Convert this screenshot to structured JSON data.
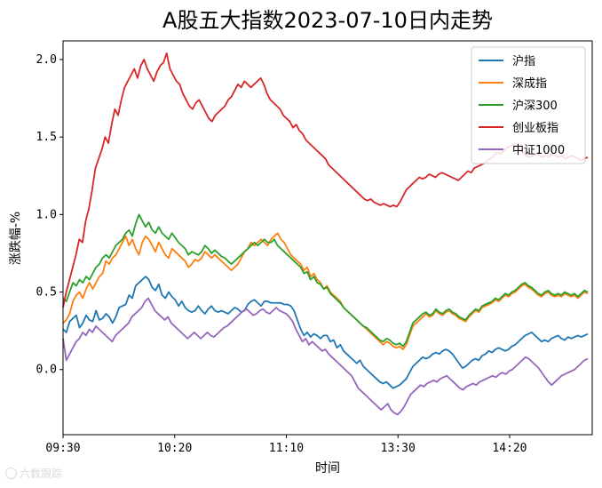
{
  "chart_data": {
    "type": "line",
    "title": "A股五大指数2023-07-10日内走势",
    "xlabel": "时间",
    "ylabel": "涨跌幅-%",
    "x_start": "09:30",
    "x_end": "14:55",
    "xticks": [
      "09:30",
      "10:20",
      "11:10",
      "13:30",
      "14:20"
    ],
    "xlim": [
      "09:30",
      "14:57"
    ],
    "yticks": [
      0.0,
      0.5,
      1.0,
      1.5,
      2.0
    ],
    "ytick_labels": [
      "0.0",
      "0.5",
      "1.0",
      "1.5",
      "2.0"
    ],
    "ylim": [
      -0.42,
      2.12
    ],
    "grid": false,
    "legend_position": "top-right",
    "series": [
      {
        "name": "沪指",
        "color": "#1f77b4",
        "values": [
          0.26,
          0.24,
          0.31,
          0.33,
          0.35,
          0.27,
          0.3,
          0.35,
          0.32,
          0.31,
          0.38,
          0.32,
          0.33,
          0.36,
          0.34,
          0.3,
          0.34,
          0.4,
          0.41,
          0.42,
          0.48,
          0.46,
          0.54,
          0.56,
          0.58,
          0.6,
          0.58,
          0.53,
          0.51,
          0.55,
          0.48,
          0.46,
          0.5,
          0.47,
          0.45,
          0.41,
          0.44,
          0.4,
          0.38,
          0.37,
          0.38,
          0.41,
          0.38,
          0.36,
          0.39,
          0.41,
          0.38,
          0.37,
          0.38,
          0.37,
          0.36,
          0.38,
          0.4,
          0.39,
          0.37,
          0.38,
          0.42,
          0.44,
          0.45,
          0.43,
          0.41,
          0.44,
          0.44,
          0.43,
          0.43,
          0.43,
          0.43,
          0.42,
          0.42,
          0.41,
          0.38,
          0.32,
          0.26,
          0.22,
          0.24,
          0.21,
          0.23,
          0.22,
          0.2,
          0.22,
          0.22,
          0.18,
          0.19,
          0.14,
          0.16,
          0.12,
          0.1,
          0.08,
          0.06,
          0.04,
          0.06,
          0.02,
          0.0,
          -0.02,
          -0.04,
          -0.06,
          -0.08,
          -0.09,
          -0.08,
          -0.1,
          -0.12,
          -0.11,
          -0.1,
          -0.08,
          -0.06,
          -0.02,
          0.02,
          0.04,
          0.06,
          0.08,
          0.07,
          0.08,
          0.1,
          0.11,
          0.1,
          0.12,
          0.13,
          0.12,
          0.1,
          0.07,
          0.04,
          0.01,
          0.02,
          0.04,
          0.06,
          0.07,
          0.06,
          0.09,
          0.1,
          0.12,
          0.11,
          0.13,
          0.14,
          0.13,
          0.12,
          0.13,
          0.15,
          0.16,
          0.18,
          0.2,
          0.22,
          0.23,
          0.24,
          0.22,
          0.2,
          0.18,
          0.19,
          0.18,
          0.2,
          0.21,
          0.22,
          0.2,
          0.19,
          0.21,
          0.2,
          0.21,
          0.22,
          0.21,
          0.22,
          0.23
        ]
      },
      {
        "name": "深成指",
        "color": "#ff7f0e",
        "values": [
          0.3,
          0.32,
          0.36,
          0.44,
          0.48,
          0.5,
          0.46,
          0.52,
          0.56,
          0.52,
          0.56,
          0.6,
          0.62,
          0.7,
          0.68,
          0.72,
          0.74,
          0.78,
          0.82,
          0.86,
          0.8,
          0.84,
          0.78,
          0.74,
          0.82,
          0.86,
          0.84,
          0.8,
          0.76,
          0.82,
          0.78,
          0.74,
          0.72,
          0.78,
          0.76,
          0.74,
          0.72,
          0.7,
          0.66,
          0.68,
          0.71,
          0.7,
          0.72,
          0.76,
          0.74,
          0.72,
          0.74,
          0.72,
          0.7,
          0.68,
          0.66,
          0.64,
          0.66,
          0.68,
          0.72,
          0.76,
          0.78,
          0.82,
          0.8,
          0.82,
          0.84,
          0.82,
          0.8,
          0.84,
          0.86,
          0.88,
          0.84,
          0.82,
          0.78,
          0.74,
          0.72,
          0.7,
          0.68,
          0.64,
          0.66,
          0.6,
          0.62,
          0.58,
          0.56,
          0.52,
          0.54,
          0.5,
          0.48,
          0.46,
          0.44,
          0.4,
          0.38,
          0.36,
          0.34,
          0.32,
          0.3,
          0.28,
          0.26,
          0.24,
          0.22,
          0.2,
          0.18,
          0.16,
          0.18,
          0.17,
          0.15,
          0.14,
          0.15,
          0.13,
          0.16,
          0.22,
          0.28,
          0.3,
          0.32,
          0.34,
          0.36,
          0.34,
          0.35,
          0.38,
          0.36,
          0.35,
          0.37,
          0.38,
          0.36,
          0.35,
          0.33,
          0.32,
          0.31,
          0.34,
          0.36,
          0.38,
          0.37,
          0.4,
          0.41,
          0.42,
          0.43,
          0.45,
          0.44,
          0.46,
          0.48,
          0.47,
          0.49,
          0.5,
          0.52,
          0.54,
          0.55,
          0.53,
          0.52,
          0.5,
          0.48,
          0.47,
          0.49,
          0.5,
          0.48,
          0.47,
          0.48,
          0.47,
          0.49,
          0.48,
          0.47,
          0.48,
          0.46,
          0.48,
          0.5,
          0.49
        ]
      },
      {
        "name": "沪深300",
        "color": "#2ca02c",
        "values": [
          0.46,
          0.44,
          0.5,
          0.56,
          0.54,
          0.58,
          0.56,
          0.6,
          0.58,
          0.62,
          0.66,
          0.68,
          0.72,
          0.74,
          0.72,
          0.76,
          0.8,
          0.82,
          0.84,
          0.88,
          0.9,
          0.86,
          0.94,
          1.0,
          0.96,
          0.92,
          0.95,
          0.9,
          0.88,
          0.92,
          0.88,
          0.86,
          0.84,
          0.88,
          0.85,
          0.82,
          0.8,
          0.78,
          0.74,
          0.76,
          0.75,
          0.74,
          0.76,
          0.8,
          0.78,
          0.75,
          0.77,
          0.75,
          0.73,
          0.72,
          0.7,
          0.68,
          0.7,
          0.72,
          0.74,
          0.76,
          0.78,
          0.8,
          0.82,
          0.8,
          0.82,
          0.84,
          0.82,
          0.82,
          0.84,
          0.8,
          0.78,
          0.76,
          0.74,
          0.72,
          0.7,
          0.68,
          0.66,
          0.62,
          0.63,
          0.58,
          0.6,
          0.56,
          0.55,
          0.52,
          0.53,
          0.49,
          0.47,
          0.45,
          0.43,
          0.4,
          0.38,
          0.36,
          0.34,
          0.32,
          0.3,
          0.28,
          0.27,
          0.25,
          0.23,
          0.21,
          0.19,
          0.18,
          0.2,
          0.19,
          0.17,
          0.16,
          0.17,
          0.15,
          0.18,
          0.24,
          0.3,
          0.32,
          0.34,
          0.36,
          0.37,
          0.35,
          0.36,
          0.39,
          0.37,
          0.36,
          0.38,
          0.39,
          0.37,
          0.36,
          0.34,
          0.33,
          0.32,
          0.35,
          0.37,
          0.39,
          0.38,
          0.41,
          0.42,
          0.43,
          0.44,
          0.46,
          0.45,
          0.47,
          0.49,
          0.48,
          0.5,
          0.51,
          0.53,
          0.55,
          0.56,
          0.54,
          0.53,
          0.51,
          0.49,
          0.48,
          0.5,
          0.51,
          0.49,
          0.48,
          0.49,
          0.48,
          0.5,
          0.49,
          0.48,
          0.49,
          0.47,
          0.49,
          0.51,
          0.5
        ]
      },
      {
        "name": "创业板指",
        "color": "#d62728",
        "values": [
          0.4,
          0.5,
          0.58,
          0.66,
          0.74,
          0.84,
          0.82,
          0.96,
          1.04,
          1.16,
          1.3,
          1.36,
          1.42,
          1.5,
          1.46,
          1.58,
          1.68,
          1.64,
          1.74,
          1.82,
          1.86,
          1.9,
          1.94,
          1.88,
          1.96,
          2.0,
          1.94,
          1.9,
          1.86,
          1.92,
          1.96,
          1.98,
          2.04,
          1.94,
          1.9,
          1.86,
          1.84,
          1.78,
          1.74,
          1.7,
          1.68,
          1.72,
          1.74,
          1.7,
          1.66,
          1.62,
          1.6,
          1.64,
          1.66,
          1.68,
          1.7,
          1.74,
          1.76,
          1.8,
          1.84,
          1.82,
          1.86,
          1.84,
          1.82,
          1.84,
          1.86,
          1.88,
          1.84,
          1.78,
          1.74,
          1.72,
          1.7,
          1.68,
          1.64,
          1.62,
          1.6,
          1.56,
          1.58,
          1.54,
          1.52,
          1.48,
          1.46,
          1.44,
          1.42,
          1.4,
          1.38,
          1.36,
          1.32,
          1.3,
          1.28,
          1.26,
          1.24,
          1.22,
          1.2,
          1.18,
          1.16,
          1.14,
          1.12,
          1.1,
          1.09,
          1.1,
          1.08,
          1.07,
          1.06,
          1.07,
          1.06,
          1.05,
          1.06,
          1.05,
          1.08,
          1.12,
          1.16,
          1.18,
          1.2,
          1.22,
          1.24,
          1.23,
          1.24,
          1.26,
          1.25,
          1.24,
          1.26,
          1.27,
          1.26,
          1.25,
          1.24,
          1.23,
          1.22,
          1.24,
          1.26,
          1.28,
          1.27,
          1.3,
          1.31,
          1.32,
          1.33,
          1.35,
          1.36,
          1.38,
          1.4,
          1.39,
          1.41,
          1.43,
          1.44,
          1.45,
          1.44,
          1.42,
          1.4,
          1.38,
          1.37,
          1.38,
          1.39,
          1.38,
          1.37,
          1.38,
          1.37,
          1.39,
          1.38,
          1.37,
          1.38,
          1.36,
          1.37,
          1.38,
          1.37,
          1.36,
          1.35,
          1.36,
          1.37
        ]
      },
      {
        "name": "中证1000",
        "color": "#9467bd",
        "values": [
          0.2,
          0.06,
          0.1,
          0.14,
          0.18,
          0.2,
          0.24,
          0.22,
          0.26,
          0.24,
          0.28,
          0.26,
          0.24,
          0.22,
          0.2,
          0.18,
          0.22,
          0.24,
          0.26,
          0.28,
          0.3,
          0.34,
          0.36,
          0.38,
          0.4,
          0.44,
          0.46,
          0.42,
          0.38,
          0.36,
          0.34,
          0.32,
          0.34,
          0.3,
          0.28,
          0.26,
          0.24,
          0.22,
          0.2,
          0.22,
          0.24,
          0.22,
          0.2,
          0.22,
          0.24,
          0.22,
          0.21,
          0.23,
          0.25,
          0.27,
          0.28,
          0.3,
          0.32,
          0.34,
          0.36,
          0.38,
          0.39,
          0.37,
          0.35,
          0.36,
          0.38,
          0.39,
          0.37,
          0.36,
          0.38,
          0.4,
          0.38,
          0.37,
          0.36,
          0.34,
          0.31,
          0.26,
          0.22,
          0.18,
          0.2,
          0.16,
          0.18,
          0.16,
          0.14,
          0.12,
          0.13,
          0.1,
          0.08,
          0.06,
          0.04,
          0.02,
          0.0,
          -0.02,
          -0.04,
          -0.08,
          -0.12,
          -0.14,
          -0.16,
          -0.18,
          -0.2,
          -0.22,
          -0.24,
          -0.26,
          -0.24,
          -0.22,
          -0.26,
          -0.28,
          -0.29,
          -0.27,
          -0.24,
          -0.2,
          -0.16,
          -0.14,
          -0.12,
          -0.1,
          -0.11,
          -0.09,
          -0.08,
          -0.07,
          -0.08,
          -0.06,
          -0.05,
          -0.04,
          -0.06,
          -0.08,
          -0.1,
          -0.12,
          -0.13,
          -0.11,
          -0.1,
          -0.09,
          -0.1,
          -0.08,
          -0.07,
          -0.06,
          -0.05,
          -0.04,
          -0.05,
          -0.03,
          -0.02,
          -0.03,
          -0.01,
          0.0,
          0.02,
          0.04,
          0.06,
          0.08,
          0.07,
          0.05,
          0.03,
          0.01,
          -0.02,
          -0.05,
          -0.08,
          -0.1,
          -0.08,
          -0.06,
          -0.04,
          -0.03,
          -0.02,
          -0.01,
          0.0,
          0.02,
          0.04,
          0.06,
          0.07
        ]
      }
    ]
  },
  "watermark": {
    "icon": "camera-icon",
    "text": "六数跟踪"
  }
}
